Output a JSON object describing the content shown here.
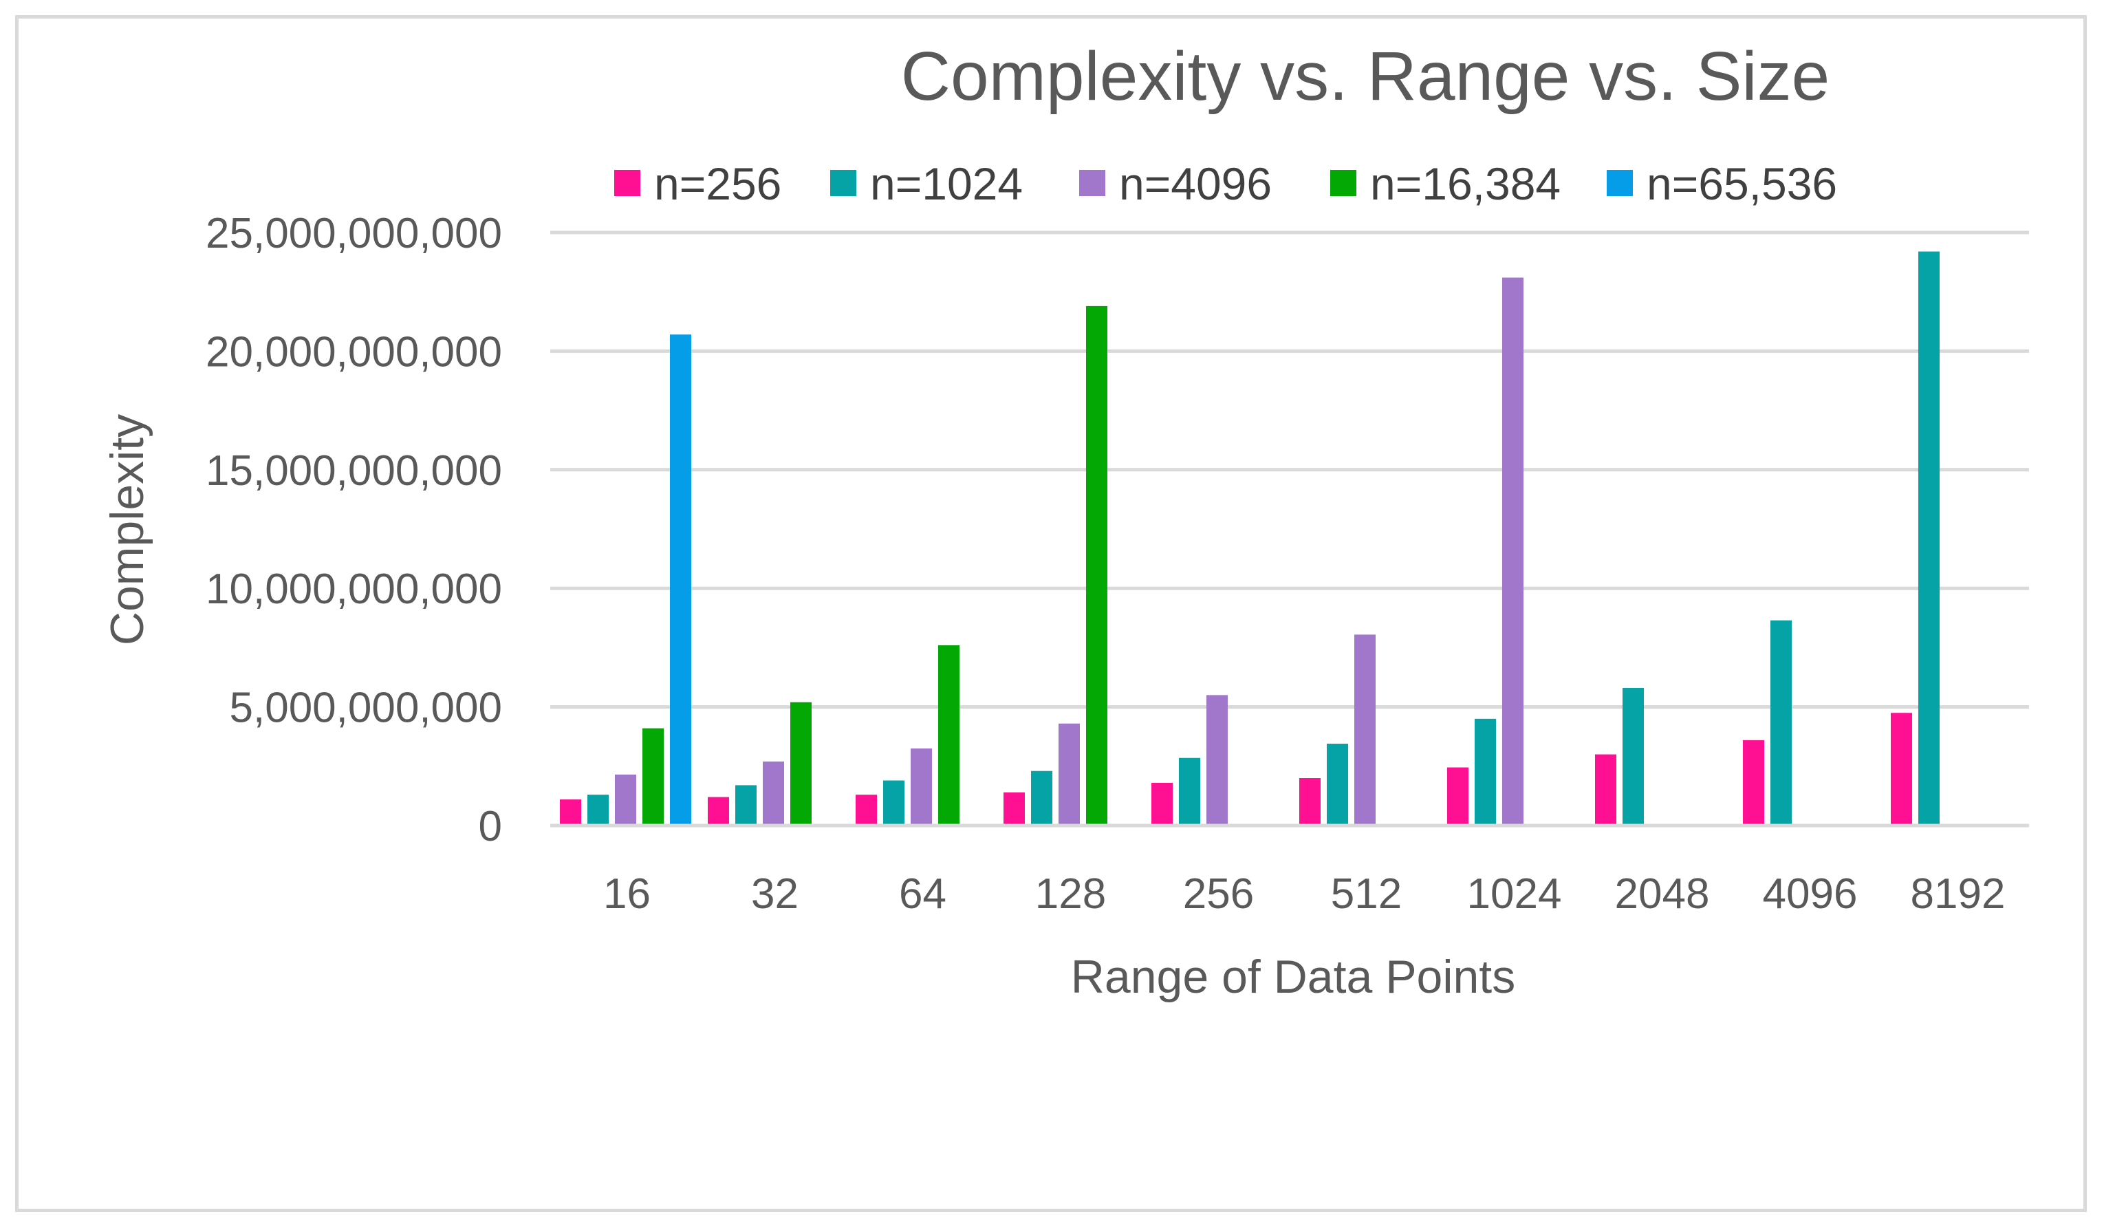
{
  "chart_data": {
    "type": "bar",
    "title": "Complexity vs. Range vs. Size",
    "xlabel": "Range of Data Points",
    "ylabel": "Complexity",
    "ylim": [
      0,
      25000000000
    ],
    "yticks": [
      0,
      5000000000,
      10000000000,
      15000000000,
      20000000000,
      25000000000
    ],
    "ytick_labels": [
      "0",
      "5,000,000,000",
      "10,000,000,000",
      "15,000,000,000",
      "20,000,000,000",
      "25,000,000,000"
    ],
    "grid": true,
    "legend_position": "top",
    "categories": [
      "16",
      "32",
      "64",
      "128",
      "256",
      "512",
      "1024",
      "2048",
      "4096",
      "8192"
    ],
    "series": [
      {
        "name": "n=256",
        "color": "#ff0f92",
        "values": [
          1100000000,
          1200000000,
          1300000000,
          1400000000,
          1800000000,
          2000000000,
          2450000000,
          3000000000,
          3600000000,
          4750000000
        ]
      },
      {
        "name": "n=1024",
        "color": "#05a3a5",
        "values": [
          1300000000,
          1700000000,
          1900000000,
          2300000000,
          2850000000,
          3450000000,
          4500000000,
          5800000000,
          8650000000,
          24200000000
        ]
      },
      {
        "name": "n=4096",
        "color": "#a077cb",
        "values": [
          2150000000,
          2700000000,
          3250000000,
          4300000000,
          5500000000,
          8050000000,
          23100000000,
          null,
          null,
          null
        ]
      },
      {
        "name": "n=16,384",
        "color": "#04a804",
        "values": [
          4100000000,
          5200000000,
          7600000000,
          21900000000,
          null,
          null,
          null,
          null,
          null,
          null
        ]
      },
      {
        "name": "n=65,536",
        "color": "#059ce8",
        "values": [
          20700000000,
          null,
          null,
          null,
          null,
          null,
          null,
          null,
          null,
          null
        ]
      }
    ]
  }
}
